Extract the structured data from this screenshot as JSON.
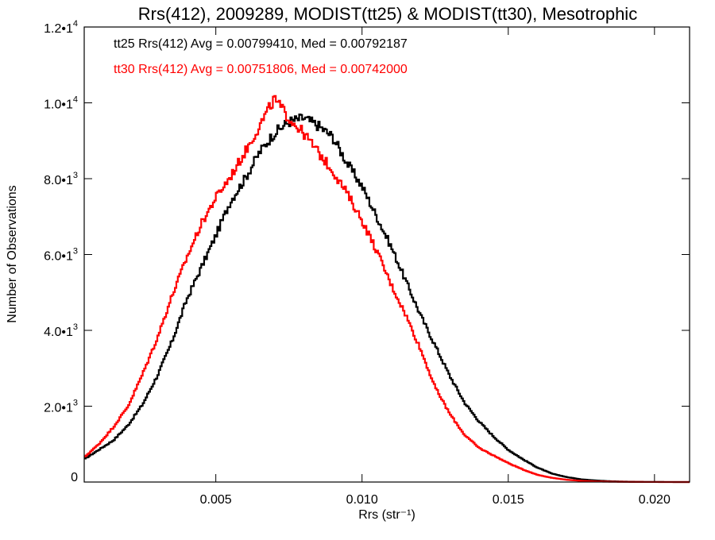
{
  "chart_data": {
    "type": "line",
    "title": "Rrs(412), 2009289, MODIST(tt25) & MODIST(tt30), Mesotrophic",
    "xlabel": "Rrs (str⁻¹)",
    "ylabel": "Number of Observations",
    "xlim": [
      0.0005,
      0.0212
    ],
    "ylim": [
      0,
      12000
    ],
    "grid": false,
    "legend_position": "top-left",
    "x_ticks": [
      {
        "value": 0.005,
        "label": "0.005"
      },
      {
        "value": 0.01,
        "label": "0.010"
      },
      {
        "value": 0.015,
        "label": "0.015"
      },
      {
        "value": 0.02,
        "label": "0.020"
      }
    ],
    "y_ticks": [
      {
        "value": 0,
        "mantissa": "0",
        "exponent": ""
      },
      {
        "value": 2000,
        "mantissa": "2.0•1",
        "exponent": "3"
      },
      {
        "value": 4000,
        "mantissa": "4.0•1",
        "exponent": "3"
      },
      {
        "value": 6000,
        "mantissa": "6.0•1",
        "exponent": "3"
      },
      {
        "value": 8000,
        "mantissa": "8.0•1",
        "exponent": "3"
      },
      {
        "value": 10000,
        "mantissa": "1.0•1",
        "exponent": "4"
      },
      {
        "value": 12000,
        "mantissa": "1.2•1",
        "exponent": "4"
      }
    ],
    "annotations": [
      "tt25 Rrs(412) Avg = 0.00799410, Med = 0.00792187",
      "tt30 Rrs(412) Avg = 0.00751806, Med = 0.00742000"
    ],
    "series": [
      {
        "color": "#000000",
        "x": [
          0.0005,
          0.001,
          0.0015,
          0.002,
          0.0025,
          0.003,
          0.0035,
          0.004,
          0.0045,
          0.005,
          0.0055,
          0.006,
          0.0065,
          0.007,
          0.0075,
          0.008,
          0.0085,
          0.009,
          0.0095,
          0.01,
          0.0105,
          0.011,
          0.0115,
          0.012,
          0.0125,
          0.013,
          0.0135,
          0.014,
          0.0145,
          0.015,
          0.0155,
          0.016,
          0.0165,
          0.017,
          0.0175,
          0.018,
          0.0185,
          0.019,
          0.0195,
          0.02,
          0.0205,
          0.021
        ],
        "y": [
          600,
          850,
          1100,
          1500,
          2050,
          2800,
          3700,
          4800,
          5650,
          6500,
          7400,
          8000,
          8700,
          9200,
          9500,
          9600,
          9400,
          9100,
          8400,
          7800,
          7000,
          6200,
          5300,
          4400,
          3600,
          2800,
          2100,
          1600,
          1200,
          850,
          600,
          380,
          220,
          130,
          70,
          40,
          20,
          10,
          5,
          3,
          1,
          0
        ]
      },
      {
        "color": "#ff0000",
        "x": [
          0.0005,
          0.001,
          0.0015,
          0.002,
          0.0025,
          0.003,
          0.0035,
          0.004,
          0.0045,
          0.005,
          0.0055,
          0.006,
          0.0065,
          0.007,
          0.0075,
          0.008,
          0.0085,
          0.009,
          0.0095,
          0.01,
          0.0105,
          0.011,
          0.0115,
          0.012,
          0.0125,
          0.013,
          0.0135,
          0.014,
          0.0145,
          0.015,
          0.0155,
          0.016,
          0.0165,
          0.017,
          0.0175,
          0.018,
          0.0185,
          0.019,
          0.0195,
          0.02,
          0.0205,
          0.021
        ],
        "y": [
          650,
          1000,
          1450,
          2000,
          2850,
          3800,
          4900,
          5900,
          6800,
          7500,
          8050,
          8700,
          9400,
          10100,
          9600,
          9200,
          8700,
          8200,
          7600,
          6900,
          6100,
          5200,
          4400,
          3500,
          2500,
          1800,
          1250,
          900,
          700,
          500,
          330,
          190,
          110,
          60,
          30,
          15,
          8,
          4,
          2,
          1,
          0,
          0
        ]
      }
    ]
  }
}
